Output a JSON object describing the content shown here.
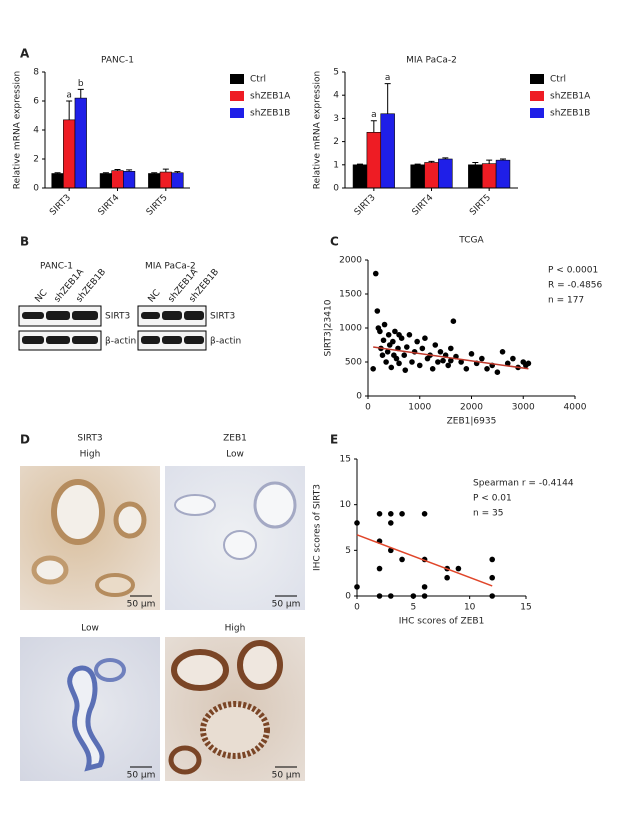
{
  "panel_labels": [
    "A",
    "B",
    "C",
    "D",
    "E"
  ],
  "blots": [
    {
      "title": "PANC-1",
      "lanes": [
        "NC",
        "shZEB1A",
        "shZEB1B"
      ],
      "proteins": [
        "SIRT3",
        "β-actin"
      ]
    },
    {
      "title": "MIA PaCa-2",
      "lanes": [
        "NC",
        "shZEB1A",
        "shZEB1B"
      ],
      "proteins": [
        "SIRT3",
        "β-actin"
      ]
    }
  ],
  "histology": {
    "columns": [
      {
        "marker": "SIRT3",
        "level": "High"
      },
      {
        "marker": "ZEB1",
        "level": "Low"
      }
    ],
    "row2_levels": [
      "Low",
      "High"
    ],
    "scale_bar": "50 μm"
  },
  "chart_data": [
    {
      "type": "bar",
      "title": "PANC-1",
      "y_label": "Relative mRNA expression",
      "categories": [
        "SIRT3",
        "SIRT4",
        "SIRT5"
      ],
      "series": [
        {
          "name": "Ctrl",
          "color": "#000000",
          "values": [
            1,
            1,
            1
          ],
          "errors": [
            0.05,
            0.05,
            0.05
          ],
          "significance": [
            null,
            null,
            null
          ]
        },
        {
          "name": "shZEB1A",
          "color": "#ee1c24",
          "values": [
            4.7,
            1.2,
            1.1
          ],
          "errors": [
            1.3,
            0.08,
            0.2
          ],
          "significance": [
            "a",
            null,
            null
          ]
        },
        {
          "name": "shZEB1B",
          "color": "#1f1fe8",
          "values": [
            6.2,
            1.15,
            1.05
          ],
          "errors": [
            0.6,
            0.1,
            0.08
          ],
          "significance": [
            "b",
            null,
            null
          ]
        }
      ],
      "ylim": [
        0,
        8
      ],
      "yticks": [
        0,
        2,
        4,
        6,
        8
      ],
      "legend": "right"
    },
    {
      "type": "bar",
      "title": "MIA PaCa-2",
      "y_label": "Relative mRNA expression",
      "categories": [
        "SIRT3",
        "SIRT4",
        "SIRT5"
      ],
      "series": [
        {
          "name": "Ctrl",
          "color": "#000000",
          "values": [
            1,
            1,
            1
          ],
          "errors": [
            0.03,
            0.03,
            0.1
          ],
          "significance": [
            null,
            null,
            null
          ]
        },
        {
          "name": "shZEB1A",
          "color": "#ee1c24",
          "values": [
            2.4,
            1.1,
            1.05
          ],
          "errors": [
            0.5,
            0.05,
            0.15
          ],
          "significance": [
            "a",
            null,
            null
          ]
        },
        {
          "name": "shZEB1B",
          "color": "#1f1fe8",
          "values": [
            3.2,
            1.25,
            1.2
          ],
          "errors": [
            1.3,
            0.05,
            0.05
          ],
          "significance": [
            "a",
            null,
            null
          ]
        }
      ],
      "ylim": [
        0,
        5
      ],
      "yticks": [
        0,
        1,
        2,
        3,
        4,
        5
      ],
      "legend": "right"
    },
    {
      "type": "scatter",
      "title": "TCGA",
      "x_label": "ZEB1|6935",
      "y_label": "SIRT3|23410",
      "color": "#000000",
      "fit_color": "#c0392b",
      "x": [
        150,
        180,
        230,
        250,
        280,
        300,
        320,
        350,
        380,
        400,
        420,
        450,
        480,
        500,
        520,
        550,
        580,
        600,
        650,
        700,
        720,
        750,
        800,
        850,
        900,
        950,
        1000,
        1050,
        1100,
        1150,
        1200,
        1250,
        1300,
        1350,
        1400,
        1450,
        1500,
        1550,
        1600,
        1650,
        1700,
        1800,
        1900,
        2000,
        2100,
        2200,
        2300,
        2400,
        2500,
        2600,
        2700,
        2800,
        2900,
        3000,
        3050,
        3100,
        100,
        200,
        600,
        1600
      ],
      "y": [
        1800,
        1250,
        950,
        700,
        600,
        820,
        1050,
        500,
        650,
        900,
        750,
        420,
        800,
        600,
        950,
        550,
        700,
        480,
        850,
        600,
        380,
        720,
        900,
        500,
        650,
        800,
        450,
        700,
        850,
        550,
        600,
        400,
        750,
        500,
        650,
        520,
        600,
        450,
        700,
        1100,
        580,
        500,
        400,
        620,
        480,
        550,
        400,
        450,
        350,
        650,
        480,
        550,
        420,
        500,
        450,
        480,
        400,
        1000,
        900,
        520
      ],
      "fit": {
        "x": [
          100,
          3100
        ],
        "y": [
          720,
          400
        ]
      },
      "annotations": [
        "P < 0.0001",
        "R = -0.4856",
        "n = 177"
      ],
      "xlim": [
        0,
        4000
      ],
      "xticks": [
        0,
        1000,
        2000,
        3000,
        4000
      ],
      "ylim": [
        0,
        2000
      ],
      "yticks": [
        0,
        500,
        1000,
        1500,
        2000
      ]
    },
    {
      "type": "scatter",
      "x_label": "IHC scores of ZEB1",
      "y_label": "IHC scores of SIRT3",
      "color": "#000000",
      "fit_color": "#e0462a",
      "x": [
        0,
        0,
        2,
        2,
        2,
        2,
        3,
        3,
        3,
        3,
        4,
        4,
        5,
        6,
        6,
        6,
        6,
        8,
        8,
        9,
        12,
        12,
        12
      ],
      "y": [
        1,
        8,
        0,
        3,
        6,
        9,
        0,
        5,
        8,
        9,
        4,
        9,
        0,
        0,
        1,
        4,
        9,
        2,
        3,
        3,
        0,
        2,
        4
      ],
      "fit": {
        "x": [
          0,
          12
        ],
        "y": [
          6.7,
          1.1
        ]
      },
      "annotations": [
        "Spearman r = -0.4144",
        "P < 0.01",
        "n = 35"
      ],
      "xlim": [
        0,
        15
      ],
      "xticks": [
        0,
        5,
        10,
        15
      ],
      "ylim": [
        0,
        15
      ],
      "yticks": [
        0,
        5,
        10,
        15
      ]
    }
  ]
}
